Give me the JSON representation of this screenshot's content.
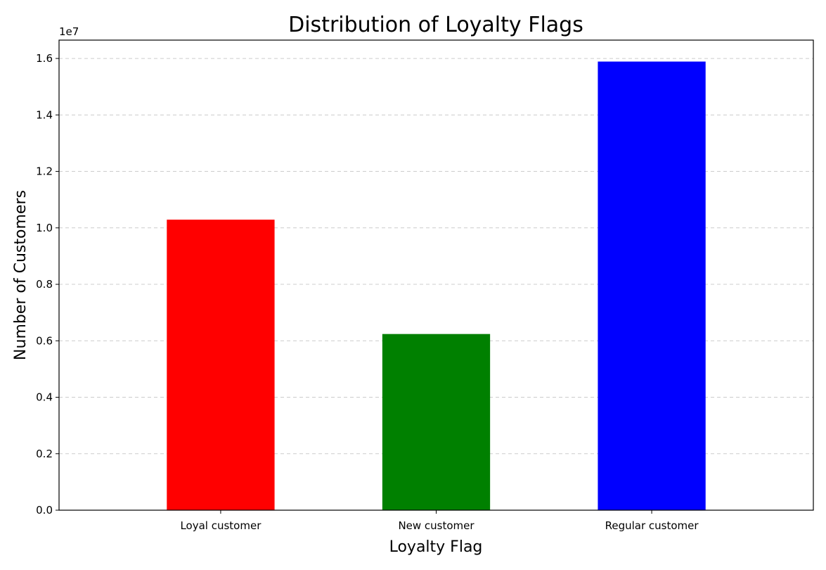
{
  "chart_data": {
    "type": "bar",
    "title": "Distribution of Loyalty Flags",
    "xlabel": "Loyalty Flag",
    "ylabel": "Number of Customers",
    "y_offset_label": "1e7",
    "categories": [
      "Loyal customer",
      "New customer",
      "Regular customer"
    ],
    "values": [
      10290000,
      6240000,
      15890000
    ],
    "colors": [
      "#ff0000",
      "#008000",
      "#0000ff"
    ],
    "ylim": [
      0,
      16650000
    ],
    "yticks": [
      0,
      2000000,
      4000000,
      6000000,
      8000000,
      10000000,
      12000000,
      14000000,
      16000000
    ],
    "ytick_labels": [
      "0.0",
      "0.2",
      "0.4",
      "0.6",
      "0.8",
      "1.0",
      "1.2",
      "1.4",
      "1.6"
    ],
    "grid": {
      "axis": "y",
      "style": "dashed",
      "color": "#cccccc"
    }
  }
}
